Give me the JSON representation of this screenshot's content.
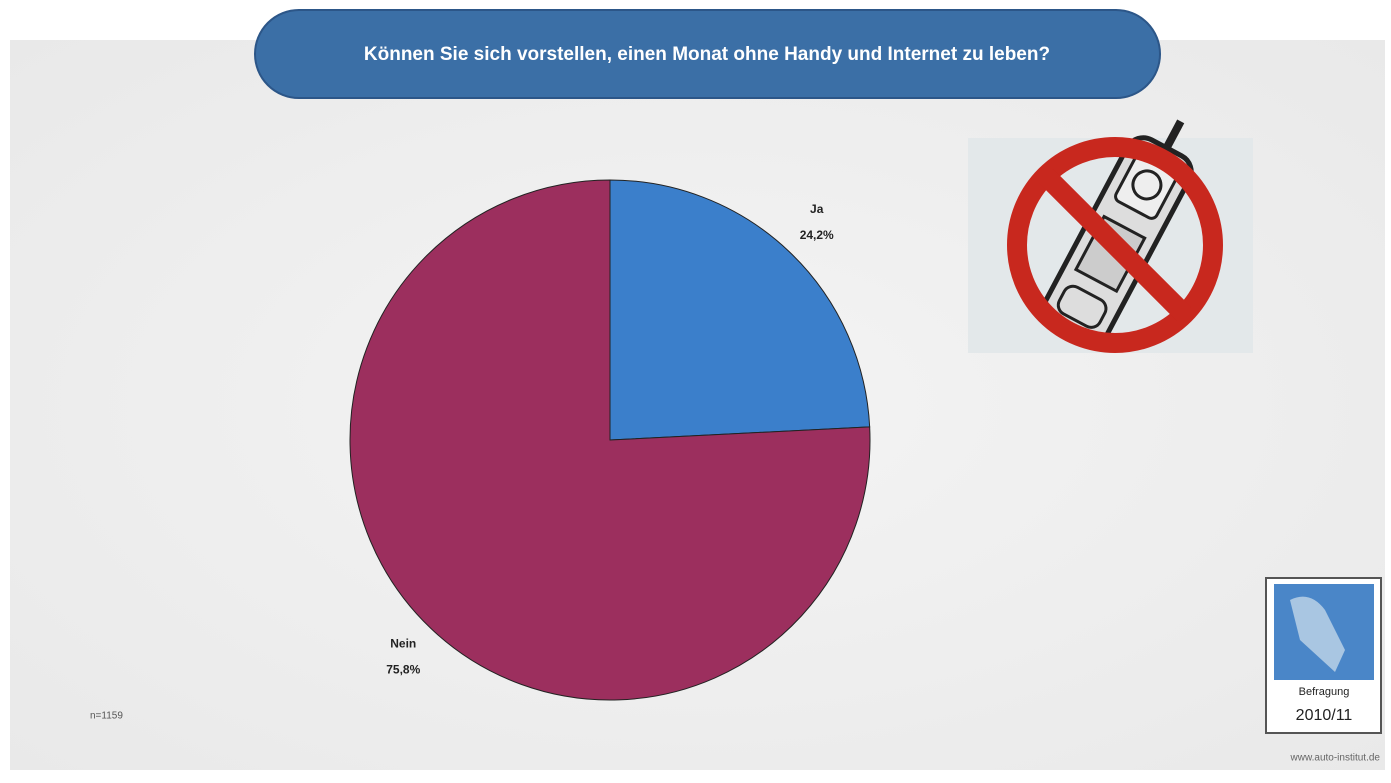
{
  "chart_data": {
    "type": "pie",
    "title": "Können Sie sich vorstellen, einen Monat ohne Handy und Internet zu leben?",
    "categories": [
      "Ja",
      "Nein"
    ],
    "values": [
      24.2,
      75.8
    ],
    "value_labels": [
      "24,2%",
      "75,8%"
    ],
    "colors": [
      "#3b7fcb",
      "#9c2f5e"
    ],
    "note": "n=1159",
    "badge_label": "Befragung",
    "badge_period": "2010/11",
    "source": "www.auto-institut.de"
  }
}
